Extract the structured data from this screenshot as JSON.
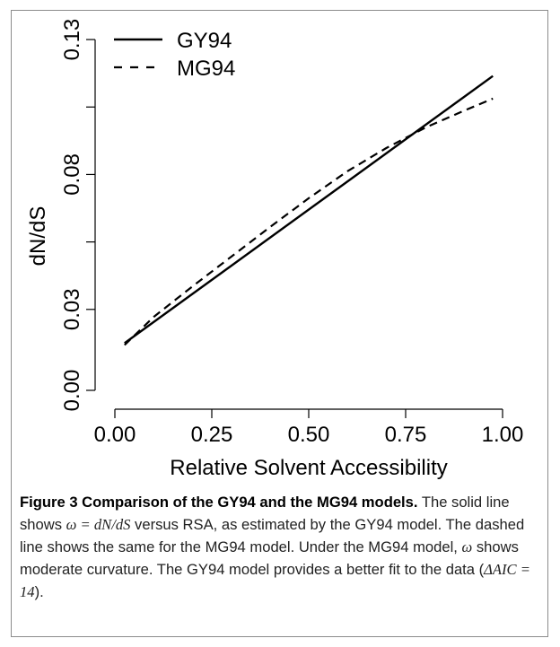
{
  "chart_data": {
    "type": "line",
    "xlabel": "Relative Solvent Accessibility",
    "ylabel": "dN/dS",
    "xlim": [
      0,
      1
    ],
    "ylim": [
      0,
      0.14
    ],
    "x_ticks": [
      "0.00",
      "0.25",
      "0.50",
      "0.75",
      "1.00"
    ],
    "x_tick_values": [
      0,
      0.25,
      0.5,
      0.75,
      1
    ],
    "y_ticks": [
      "0.00",
      "0.03",
      "0.08",
      "0.13"
    ],
    "y_tick_values": [
      0,
      0.03,
      0.08,
      0.13
    ],
    "y_minor_ticks": [
      0.055,
      0.105
    ],
    "grid": false,
    "legend_position": "top-left",
    "series": [
      {
        "name": "GY94",
        "style": "solid",
        "x": [
          0.025,
          0.975
        ],
        "y": [
          0.0175,
          0.1165
        ]
      },
      {
        "name": "MG94",
        "style": "dashed",
        "x": [
          0.025,
          0.1,
          0.2,
          0.3,
          0.4,
          0.5,
          0.6,
          0.7,
          0.8,
          0.9,
          0.975
        ],
        "y": [
          0.0168,
          0.0272,
          0.0385,
          0.0495,
          0.0605,
          0.0712,
          0.0812,
          0.0898,
          0.0973,
          0.1036,
          0.1081
        ]
      }
    ]
  },
  "caption": {
    "title": "Figure 3 Comparison of the GY94 and the MG94 models.",
    "text_1": " The solid line shows ",
    "omega_eq": "ω = dN/dS",
    "text_2": " versus RSA, as estimated by the GY94 model. The dashed line shows the same for the MG94 model. Under the MG94 model, ",
    "omega": "ω",
    "text_3": " shows moderate curvature. The GY94 model provides a better fit to the data (",
    "delta_aic": "ΔAIC = 14",
    "text_4": ")."
  }
}
